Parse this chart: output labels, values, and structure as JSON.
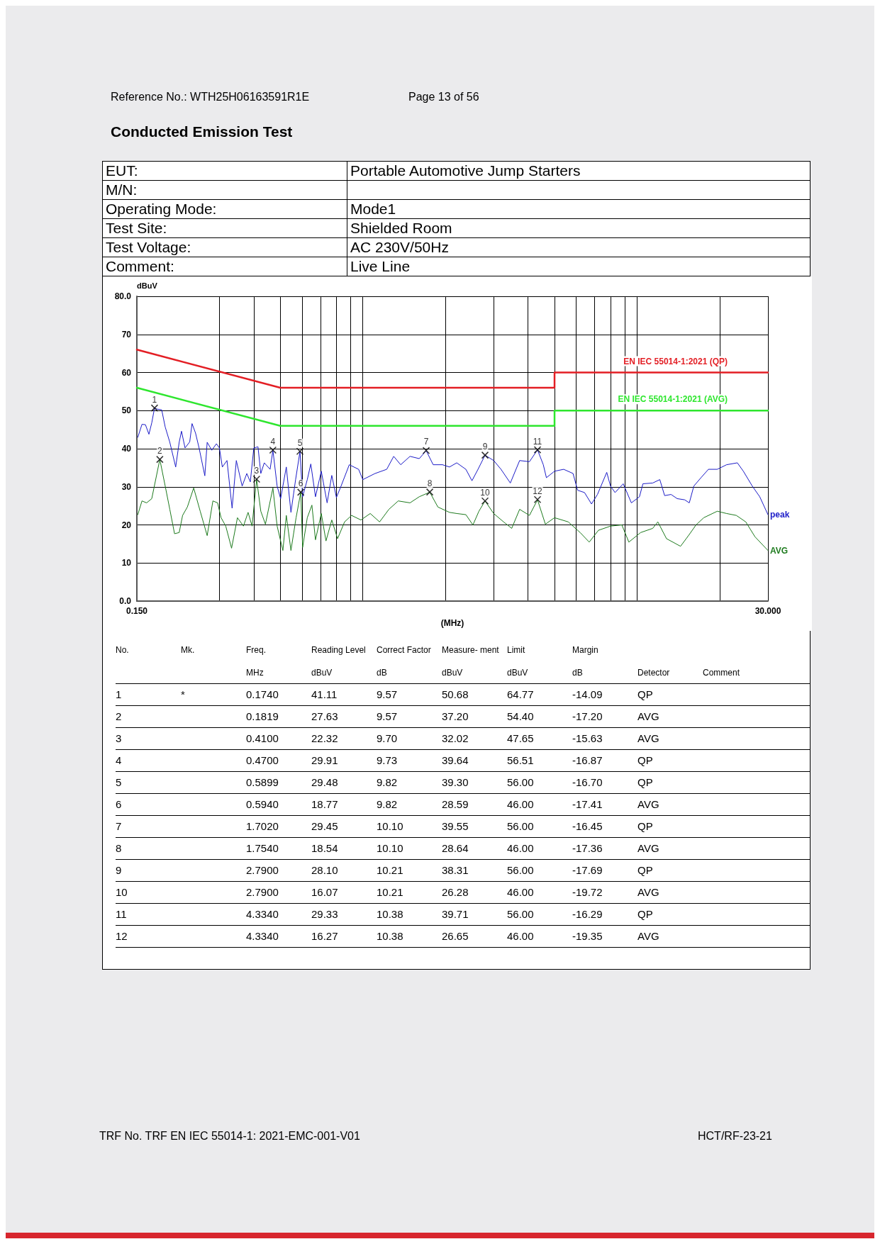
{
  "chart_data": {
    "type": "line",
    "title": "Conducted Emission Test",
    "xlabel": "(MHz)",
    "ylabel": "dBuV",
    "log": "x",
    "xlim": [
      0.15,
      30
    ],
    "xticks": [
      {
        "value": 0.15,
        "label": "0.150"
      },
      {
        "value": 0.3,
        "label": null
      },
      {
        "value": 0.4,
        "label": null
      },
      {
        "value": 0.5,
        "label": null
      },
      {
        "value": 0.6,
        "label": null
      },
      {
        "value": 0.7,
        "label": null
      },
      {
        "value": 0.8,
        "label": null
      },
      {
        "value": 0.9,
        "label": null
      },
      {
        "value": 1,
        "label": null
      },
      {
        "value": 2,
        "label": null
      },
      {
        "value": 3,
        "label": null
      },
      {
        "value": 4,
        "label": null
      },
      {
        "value": 5,
        "label": null
      },
      {
        "value": 6,
        "label": null
      },
      {
        "value": 7,
        "label": null
      },
      {
        "value": 8,
        "label": null
      },
      {
        "value": 9,
        "label": null
      },
      {
        "value": 10,
        "label": null
      },
      {
        "value": 20,
        "label": null
      },
      {
        "value": 30,
        "label": "30.000"
      }
    ],
    "ylim": [
      0,
      80
    ],
    "yticks": [
      {
        "value": 0,
        "label": "0.0"
      },
      10,
      20,
      30,
      40,
      50,
      60,
      70,
      {
        "value": 80,
        "label": "80.0"
      }
    ],
    "grid": true,
    "marker": "none",
    "series": [
      {
        "name": "EN IEC 55014-1:2021 (QP)",
        "color": "#e31e24",
        "x": [
          0.15,
          0.5,
          5,
          5,
          30
        ],
        "values": [
          66,
          56,
          56,
          60,
          60
        ]
      },
      {
        "name": "EN IEC 55014-1:2021 (AVG)",
        "color": "#2ee62e",
        "x": [
          0.15,
          0.5,
          5,
          5,
          30
        ],
        "values": [
          56,
          46,
          46,
          50,
          50
        ]
      },
      {
        "name": "peak",
        "color": "#1c1cc8",
        "x": [
          0.1512,
          0.1566,
          0.1612,
          0.166,
          0.17,
          0.174,
          0.1778,
          0.1848,
          0.1903,
          0.1978,
          0.2078,
          0.214,
          0.2182,
          0.2248,
          0.2338,
          0.2384,
          0.2455,
          0.2529,
          0.2654,
          0.2707,
          0.2813,
          0.2925,
          0.3,
          0.3074,
          0.3197,
          0.3337,
          0.3457,
          0.3631,
          0.3776,
          0.3888,
          0.4004,
          0.4147,
          0.4246,
          0.4372,
          0.4591,
          0.47,
          0.487,
          0.5015,
          0.526,
          0.5469,
          0.5687,
          0.59,
          0.6032,
          0.6273,
          0.6461,
          0.672,
          0.7056,
          0.7409,
          0.7705,
          0.8011,
          0.833,
          0.8925,
          0.9651,
          1.0,
          1.108,
          1.222,
          1.296,
          1.374,
          1.486,
          1.606,
          1.702,
          1.805,
          1.952,
          2.07,
          2.2,
          2.375,
          2.5,
          2.63,
          2.79,
          3.0,
          3.19,
          3.45,
          3.73,
          4.05,
          4.334,
          4.55,
          4.67,
          5.0,
          5.4,
          5.84,
          6.07,
          6.43,
          6.82,
          7.17,
          7.75,
          8.0,
          8.31,
          8.9,
          9.53,
          10.2,
          10.5,
          11.4,
          12.1,
          12.6,
          13.3,
          14.0,
          14.9,
          15.5,
          16.1,
          17.1,
          18.2,
          19.6,
          21.2,
          23.2,
          24.4,
          26.3,
          28.0,
          30
        ],
        "values": [
          43.0,
          46.4,
          46.3,
          43.8,
          46.8,
          50.7,
          50.4,
          50.2,
          45.7,
          41.7,
          35.2,
          41.7,
          44.6,
          40.2,
          41.8,
          46.6,
          44.1,
          40.2,
          32.9,
          41.7,
          39.6,
          41.3,
          40.2,
          35.2,
          36.9,
          24.4,
          36.9,
          30.2,
          33.5,
          31.3,
          40.2,
          40.5,
          33.5,
          36.3,
          34.6,
          39.6,
          30.2,
          26.9,
          35.2,
          23.3,
          31.9,
          39.3,
          27.4,
          31.9,
          36.0,
          27.4,
          34.1,
          25.8,
          33.0,
          27.2,
          30.2,
          35.8,
          34.6,
          31.9,
          33.5,
          34.6,
          38.0,
          35.8,
          38.0,
          37.4,
          39.5,
          35.8,
          35.8,
          35.2,
          36.3,
          34.6,
          31.6,
          34.6,
          38.3,
          36.9,
          34.6,
          31.0,
          36.9,
          36.6,
          39.7,
          35.8,
          32.4,
          34.1,
          34.6,
          33.5,
          29.1,
          28.5,
          25.5,
          28.0,
          33.8,
          30.2,
          28.5,
          30.8,
          25.8,
          27.4,
          30.8,
          31.0,
          31.9,
          27.7,
          28.0,
          26.9,
          26.6,
          25.8,
          30.2,
          32.4,
          34.6,
          34.6,
          35.8,
          36.3,
          34.1,
          30.2,
          27.4,
          22.7
        ]
      },
      {
        "name": "AVG",
        "color": "#1d7a1d",
        "x": [
          0.1512,
          0.1566,
          0.1628,
          0.17,
          0.1819,
          0.1903,
          0.1978,
          0.2058,
          0.214,
          0.2202,
          0.2292,
          0.2417,
          0.2553,
          0.2707,
          0.284,
          0.2954,
          0.3042,
          0.3164,
          0.3322,
          0.349,
          0.367,
          0.3816,
          0.3946,
          0.41,
          0.4246,
          0.4414,
          0.47,
          0.487,
          0.5111,
          0.526,
          0.5469,
          0.571,
          0.594,
          0.6032,
          0.6273,
          0.6521,
          0.672,
          0.7056,
          0.7339,
          0.7705,
          0.809,
          0.8579,
          0.9099,
          0.9842,
          1.064,
          1.151,
          1.245,
          1.346,
          1.486,
          1.606,
          1.754,
          1.878,
          2.07,
          2.2,
          2.375,
          2.52,
          2.65,
          2.79,
          3.0,
          3.26,
          3.49,
          3.73,
          4.05,
          4.334,
          4.63,
          5.0,
          5.61,
          6.2,
          6.69,
          7.23,
          8.0,
          8.8,
          9.33,
          10.3,
          11.4,
          11.9,
          12.8,
          14.4,
          15.5,
          16.4,
          17.5,
          19.6,
          21.2,
          23.0,
          24.9,
          26.9,
          30
        ],
        "values": [
          22.7,
          26.3,
          25.8,
          26.9,
          37.2,
          30.2,
          24.1,
          17.7,
          18.0,
          22.5,
          24.7,
          29.7,
          23.6,
          17.2,
          26.3,
          25.8,
          21.9,
          19.7,
          13.9,
          21.9,
          19.7,
          23.3,
          19.7,
          32.0,
          23.6,
          20.2,
          29.7,
          19.7,
          13.3,
          22.5,
          13.3,
          21.9,
          28.6,
          14.1,
          21.9,
          25.2,
          16.1,
          23.0,
          15.8,
          21.3,
          16.4,
          20.8,
          22.5,
          21.3,
          23.0,
          20.8,
          24.1,
          26.3,
          25.8,
          27.4,
          28.6,
          24.7,
          23.3,
          23.0,
          22.7,
          20.0,
          23.6,
          26.3,
          23.0,
          20.8,
          19.1,
          24.1,
          22.5,
          26.6,
          20.2,
          21.9,
          20.8,
          18.0,
          15.5,
          18.6,
          19.7,
          20.0,
          15.5,
          18.0,
          19.1,
          20.8,
          16.4,
          14.4,
          17.5,
          20.0,
          21.9,
          23.6,
          23.0,
          22.5,
          20.8,
          16.9,
          13.3
        ]
      },
      {
        "type": "scatter",
        "color": "#000000",
        "marker": "cross",
        "x": [
          0.174,
          0.1819,
          0.41,
          0.47,
          0.5899,
          0.594,
          1.702,
          1.754,
          2.79,
          2.79,
          4.334,
          4.334
        ],
        "values": [
          50.68,
          37.2,
          32.02,
          39.64,
          39.3,
          28.59,
          39.55,
          28.64,
          38.31,
          26.28,
          39.71,
          26.65
        ]
      }
    ],
    "annotations": [
      {
        "text": "1",
        "x": 0.174,
        "y": 50.68
      },
      {
        "text": "2",
        "x": 0.1819,
        "y": 37.2
      },
      {
        "text": "3",
        "x": 0.41,
        "y": 32.02
      },
      {
        "text": "4",
        "x": 0.47,
        "y": 39.64
      },
      {
        "text": "5",
        "x": 0.5899,
        "y": 39.3
      },
      {
        "text": "6",
        "x": 0.594,
        "y": 28.59
      },
      {
        "text": "7",
        "x": 1.702,
        "y": 39.55
      },
      {
        "text": "8",
        "x": 1.754,
        "y": 28.64
      },
      {
        "text": "9",
        "x": 2.79,
        "y": 38.31
      },
      {
        "text": "10",
        "x": 2.79,
        "y": 26.28
      },
      {
        "text": "11",
        "x": 4.334,
        "y": 39.71
      },
      {
        "text": "12",
        "x": 4.334,
        "y": 26.65
      },
      "Reference No.: WTH25H06163591R1E",
      "Page 13 of 56",
      "EUT:",
      "Portable Automotive Jump Starters",
      "M/N:",
      "Operating Mode:",
      "Mode1",
      "Test Site:",
      "Shielded Room",
      "Test Voltage:",
      "AC 230V/50Hz",
      "Comment:",
      "Live Line",
      "No.\tMk.\tFreq.\tReading Level\tCorrect Factor\tMeasure- ment\tLimit\tMargin",
      "\t\tMHz\tdBuV\tdB\tdBuV\tdBuV\tdB\tDetector\tComment",
      "1\t*\t0.1740\t41.11\t9.57\t50.68\t64.77\t-14.09\tQP",
      "2\t\t0.1819\t27.63\t9.57\t37.20\t54.40\t-17.20\tAVG",
      "3\t\t0.4100\t22.32\t9.70\t32.02\t47.65\t-15.63\tAVG",
      "4\t\t0.4700\t29.91\t9.73\t39.64\t56.51\t-16.87\tQP",
      "5\t\t0.5899\t29.48\t9.82\t39.30\t56.00\t-16.70\tQP",
      "6\t\t0.5940\t18.77\t9.82\t28.59\t46.00\t-17.41\tAVG",
      "7\t\t1.7020\t29.45\t10.10\t39.55\t56.00\t-16.45\tQP",
      "8\t\t1.7540\t18.54\t10.10\t28.64\t46.00\t-17.36\tAVG",
      "9\t\t2.7900\t28.10\t10.21\t38.31\t56.00\t-17.69\tQP",
      "10\t\t2.7900\t16.07\t10.21\t26.28\t46.00\t-19.72\tAVG",
      "11\t\t4.3340\t29.33\t10.38\t39.71\t56.00\t-16.29\tQP",
      "12\t\t4.3340\t16.27\t10.38\t26.65\t46.00\t-19.35\tAVG",
      "TRF No. TRF EN IEC 55014-1: 2021-EMC-001-V01",
      "HCT/RF-23-21"
    ]
  }
}
